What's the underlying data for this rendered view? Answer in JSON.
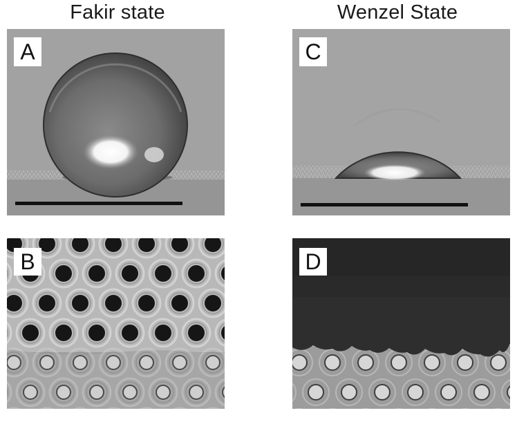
{
  "titles": {
    "left": "Fakir state",
    "right": "Wenzel State"
  },
  "panels": {
    "a": "A",
    "b": "B",
    "c": "C",
    "d": "D"
  }
}
